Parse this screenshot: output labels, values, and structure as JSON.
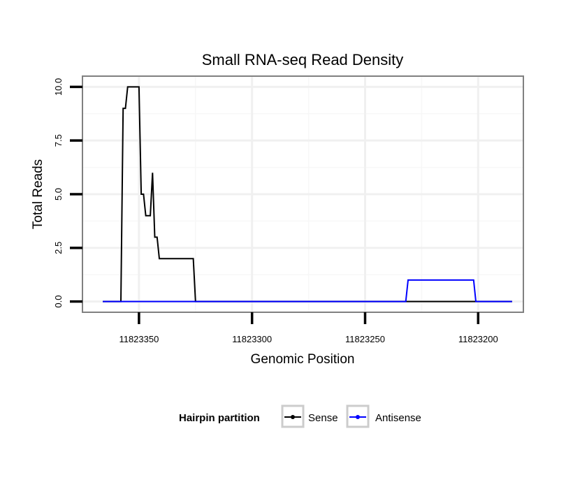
{
  "chart_data": {
    "type": "line",
    "title": "Small RNA-seq Read Density",
    "xlabel": "Genomic Position",
    "ylabel": "Total Reads",
    "xlim": [
      11823375,
      11823180
    ],
    "x_reversed": true,
    "ylim": [
      -0.5,
      10.5
    ],
    "xticks": [
      11823350,
      11823300,
      11823250,
      11823200
    ],
    "xtick_labels": [
      "11823350",
      "11823300",
      "11823250",
      "11823200"
    ],
    "yticks": [
      0,
      2.5,
      5,
      7.5,
      10
    ],
    "ytick_labels": [
      "0.0",
      "2.5",
      "5.0",
      "7.5",
      "10.0"
    ],
    "grid": true,
    "legend": {
      "title": "Hairpin partition",
      "position": "bottom",
      "entries": [
        "Sense",
        "Antisense"
      ]
    },
    "series": [
      {
        "name": "Sense",
        "color": "#000000",
        "x": [
          11823366,
          11823358,
          11823357,
          11823356,
          11823355,
          11823354,
          11823350,
          11823349,
          11823348,
          11823347,
          11823345,
          11823344,
          11823343,
          11823342,
          11823341,
          11823340,
          11823326,
          11823325,
          11823200,
          11823199,
          11823193,
          11823192,
          11823185
        ],
        "y": [
          0,
          0,
          9,
          9,
          10,
          10,
          10,
          5,
          5,
          4,
          4,
          6,
          3,
          3,
          2,
          2,
          2,
          0,
          0,
          0,
          0,
          0,
          0
        ]
      },
      {
        "name": "Antisense",
        "color": "#0000ff",
        "x": [
          11823366,
          11823325,
          11823232,
          11823231,
          11823202,
          11823201,
          11823185
        ],
        "y": [
          0,
          0,
          0,
          1,
          1,
          0,
          0
        ]
      }
    ]
  }
}
